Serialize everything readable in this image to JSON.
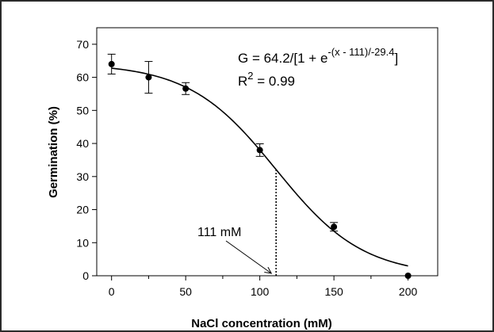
{
  "chart_data": {
    "type": "scatter",
    "xlabel": "NaCl concentration (mM)",
    "ylabel": "Germination (%)",
    "xlim": [
      -10,
      220
    ],
    "ylim": [
      0,
      75
    ],
    "x_ticks": [
      0,
      50,
      100,
      150,
      200
    ],
    "x_minor_ticks": [
      25,
      75,
      125,
      175
    ],
    "y_ticks": [
      0,
      10,
      20,
      30,
      40,
      50,
      60,
      70
    ],
    "grid": false,
    "series": [
      {
        "points": [
          {
            "x": 0,
            "y": 64.0,
            "err": 3.0
          },
          {
            "x": 25,
            "y": 60.0,
            "err": 4.8
          },
          {
            "x": 50,
            "y": 56.6,
            "err": 1.8
          },
          {
            "x": 100,
            "y": 38.0,
            "err": 1.9
          },
          {
            "x": 150,
            "y": 14.8,
            "err": 1.3
          },
          {
            "x": 200,
            "y": 0.0,
            "err": 0
          }
        ]
      }
    ],
    "fit": {
      "model": "sigmoid",
      "a": 64.2,
      "x0": 111,
      "b": -29.4,
      "x_range": [
        0,
        200
      ]
    },
    "equation": {
      "prefix": "G = 64.2/[1 + e",
      "exponent": "-(x - 111)/-29.4",
      "suffix": "]",
      "r2_label": "R",
      "r2_sup": "2",
      "r2_value": " = 0.99"
    },
    "annotation": {
      "label": "111 mM",
      "x": 111
    }
  }
}
